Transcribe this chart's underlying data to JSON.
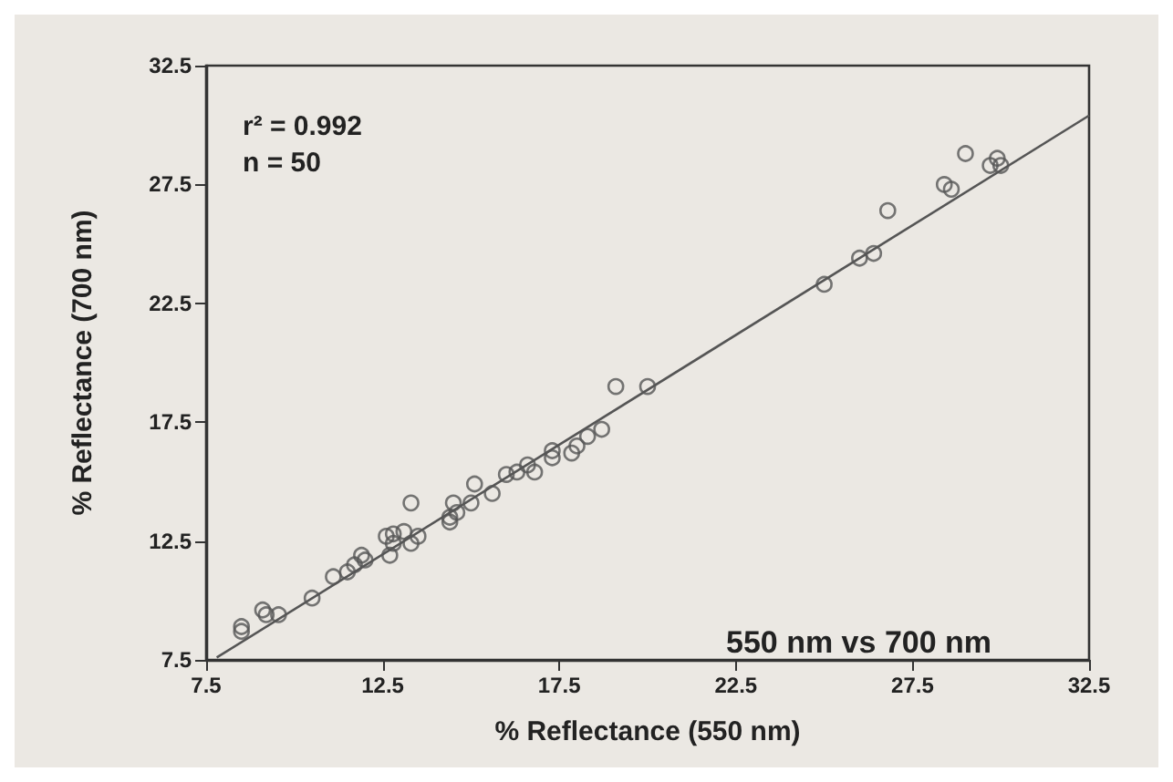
{
  "chart_data": {
    "type": "scatter",
    "xlabel": "% Reflectance (550 nm)",
    "ylabel": "% Reflectance (700 nm)",
    "xlim": [
      7.5,
      32.5
    ],
    "xticks": [
      7.5,
      12.5,
      17.5,
      22.5,
      27.5,
      32.5
    ],
    "ylim": [
      7.5,
      32.5
    ],
    "yticks": [
      7.5,
      12.5,
      17.5,
      22.5,
      27.5,
      32.5
    ],
    "grid": false,
    "marker": "circle",
    "annotations": [
      "r² = 0.992",
      "n = 50",
      "550 nm vs 700 nm"
    ],
    "series": [
      {
        "color": "#555555",
        "x": [
          8.5,
          8.5,
          9.1,
          9.2,
          9.55,
          10.5,
          11.1,
          11.5,
          11.7,
          11.9,
          12.0,
          12.6,
          12.8,
          12.7,
          12.8,
          13.1,
          13.3,
          13.5,
          13.3,
          14.4,
          14.4,
          14.5,
          14.6,
          15.0,
          15.1,
          15.6,
          16.0,
          16.3,
          16.6,
          16.8,
          17.3,
          17.3,
          17.85,
          18.0,
          18.3,
          18.7,
          19.1,
          20.0,
          25.0,
          26.0,
          26.4,
          26.8,
          28.4,
          28.6,
          29.0,
          29.7,
          29.9,
          30.0
        ],
        "values": [
          8.9,
          8.7,
          9.6,
          9.4,
          9.4,
          10.1,
          11.0,
          11.2,
          11.5,
          11.9,
          11.7,
          12.7,
          12.8,
          11.9,
          12.4,
          12.9,
          12.4,
          12.7,
          14.1,
          13.3,
          13.5,
          14.1,
          13.7,
          14.1,
          14.9,
          14.5,
          15.3,
          15.4,
          15.7,
          15.4,
          16.3,
          16.0,
          16.2,
          16.5,
          16.9,
          17.2,
          19.0,
          19.0,
          23.3,
          24.4,
          24.6,
          26.4,
          27.5,
          27.3,
          28.8,
          28.3,
          28.6,
          28.3
        ]
      },
      {
        "type": "line",
        "marker": "none",
        "color": "#555555",
        "x": [
          7.8,
          32.5
        ],
        "values": [
          7.6,
          30.4
        ]
      }
    ]
  }
}
